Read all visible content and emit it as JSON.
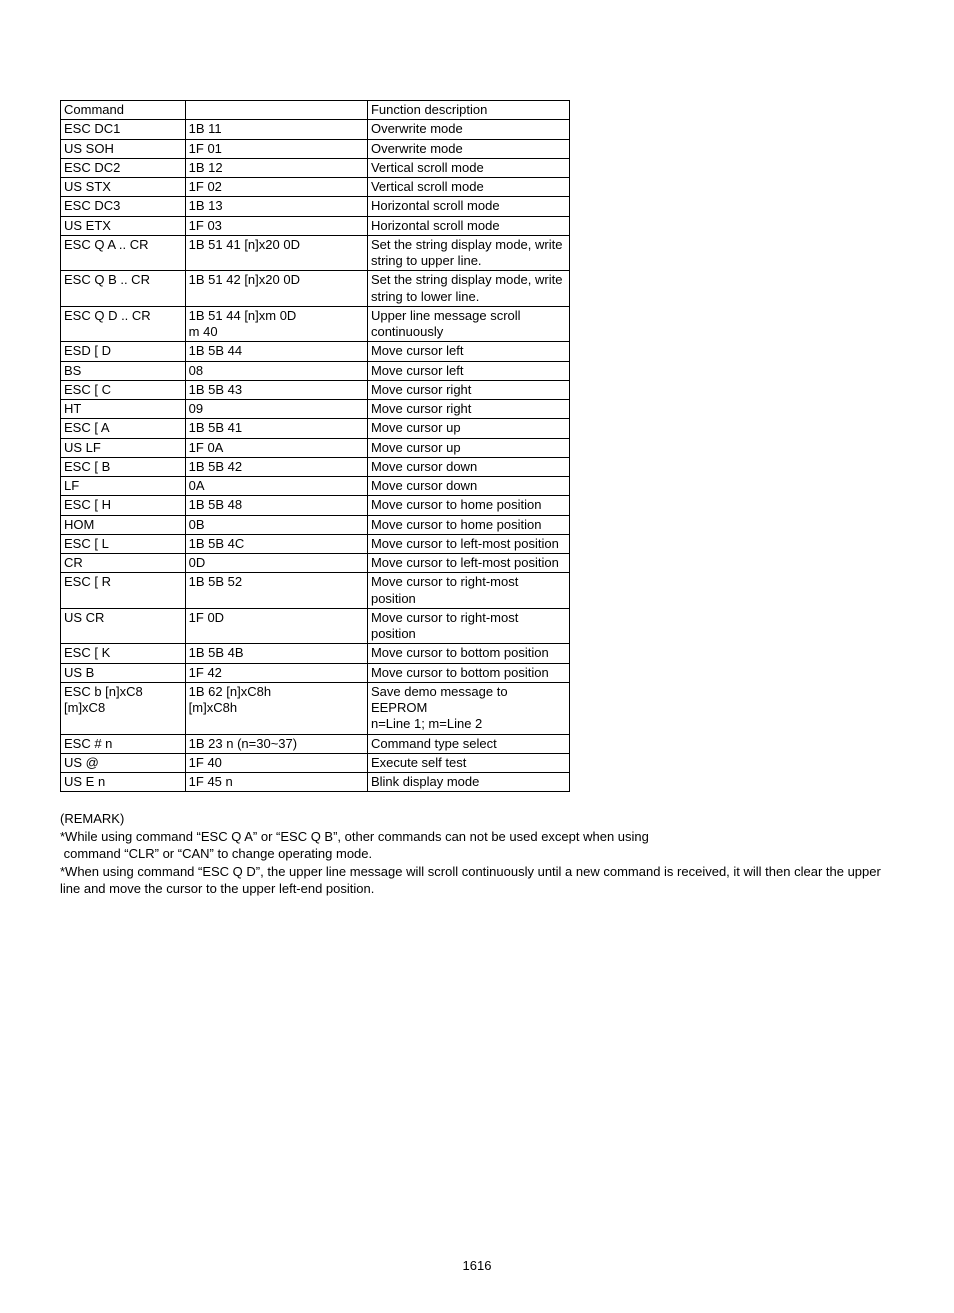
{
  "table": {
    "headers": [
      "Command",
      "",
      "Function description"
    ],
    "rows": [
      {
        "cmd": "ESC DC1",
        "hex": "1B 11",
        "desc": "Overwrite mode"
      },
      {
        "cmd": "US SOH",
        "hex": "1F 01",
        "desc": "Overwrite mode"
      },
      {
        "cmd": "ESC DC2",
        "hex": "1B 12",
        "desc": "Vertical scroll mode"
      },
      {
        "cmd": "US STX",
        "hex": "1F 02",
        "desc": "Vertical scroll mode"
      },
      {
        "cmd": "ESC DC3",
        "hex": "1B 13",
        "desc": "Horizontal scroll mode"
      },
      {
        "cmd": "US ETX",
        "hex": "1F 03",
        "desc": "Horizontal scroll mode"
      },
      {
        "cmd": "ESC Q A .. CR",
        "hex": "1B 51 41 [n]x20 0D",
        "desc": "Set the string display mode, write string to upper line."
      },
      {
        "cmd": "ESC Q B .. CR",
        "hex": "1B 51 42 [n]x20 0D",
        "desc": "Set the string display mode, write string to lower line."
      },
      {
        "cmd": "ESC Q D .. CR",
        "hex": "1B 51 44 [n]xm 0D\nm   40",
        "desc": "Upper line message scroll continuously"
      },
      {
        "cmd": "ESD [ D",
        "hex": "1B 5B 44",
        "desc": "Move cursor left"
      },
      {
        "cmd": "BS",
        "hex": "08",
        "desc": "Move cursor left"
      },
      {
        "cmd": "ESC [ C",
        "hex": "1B 5B 43",
        "desc": "Move cursor right"
      },
      {
        "cmd": "HT",
        "hex": "09",
        "desc": "Move cursor right"
      },
      {
        "cmd": "ESC [ A",
        "hex": "1B 5B 41",
        "desc": "Move cursor up"
      },
      {
        "cmd": "US LF",
        "hex": "1F 0A",
        "desc": "Move cursor up"
      },
      {
        "cmd": "ESC [ B",
        "hex": "1B 5B 42",
        "desc": "Move cursor down"
      },
      {
        "cmd": "LF",
        "hex": "0A",
        "desc": "Move cursor down"
      },
      {
        "cmd": "ESC [ H",
        "hex": "1B 5B 48",
        "desc": "Move cursor to home position"
      },
      {
        "cmd": "HOM",
        "hex": "0B",
        "desc": "Move cursor to home position"
      },
      {
        "cmd": "ESC [ L",
        "hex": "1B 5B 4C",
        "desc": "Move cursor to left-most position"
      },
      {
        "cmd": "CR",
        "hex": "0D",
        "desc": "Move cursor to left-most position"
      },
      {
        "cmd": "ESC [ R",
        "hex": "1B 5B 52",
        "desc": "Move cursor to right-most position"
      },
      {
        "cmd": "US CR",
        "hex": "1F 0D",
        "desc": "Move cursor to right-most position"
      },
      {
        "cmd": "ESC [ K",
        "hex": "1B 5B 4B",
        "desc": "Move cursor to bottom position"
      },
      {
        "cmd": "US B",
        "hex": "1F 42",
        "desc": "Move cursor to bottom position"
      },
      {
        "cmd": "ESC b [n]xC8 [m]xC8",
        "hex": "1B 62   [n]xC8h\n           [m]xC8h",
        "desc": "Save demo message to EEPROM\nn=Line 1; m=Line 2"
      },
      {
        "cmd": "ESC # n",
        "hex": "1B 23 n (n=30~37)",
        "desc": "Command type select"
      },
      {
        "cmd": "US @",
        "hex": "1F 40",
        "desc": "Execute self test"
      },
      {
        "cmd": "US E n",
        "hex": "1F 45 n",
        "desc": "Blink display mode"
      }
    ]
  },
  "remarks": {
    "title": "(REMARK)",
    "lines": [
      "*While using command “ESC Q A” or “ESC Q B”, other commands can not be used except when using",
      " command “CLR” or “CAN” to change operating mode.",
      "*When using command “ESC Q D”, the upper line message will scroll continuously until a new command is received, it will then clear the upper line and move the cursor to the upper left-end position."
    ]
  },
  "page_number": "1616"
}
